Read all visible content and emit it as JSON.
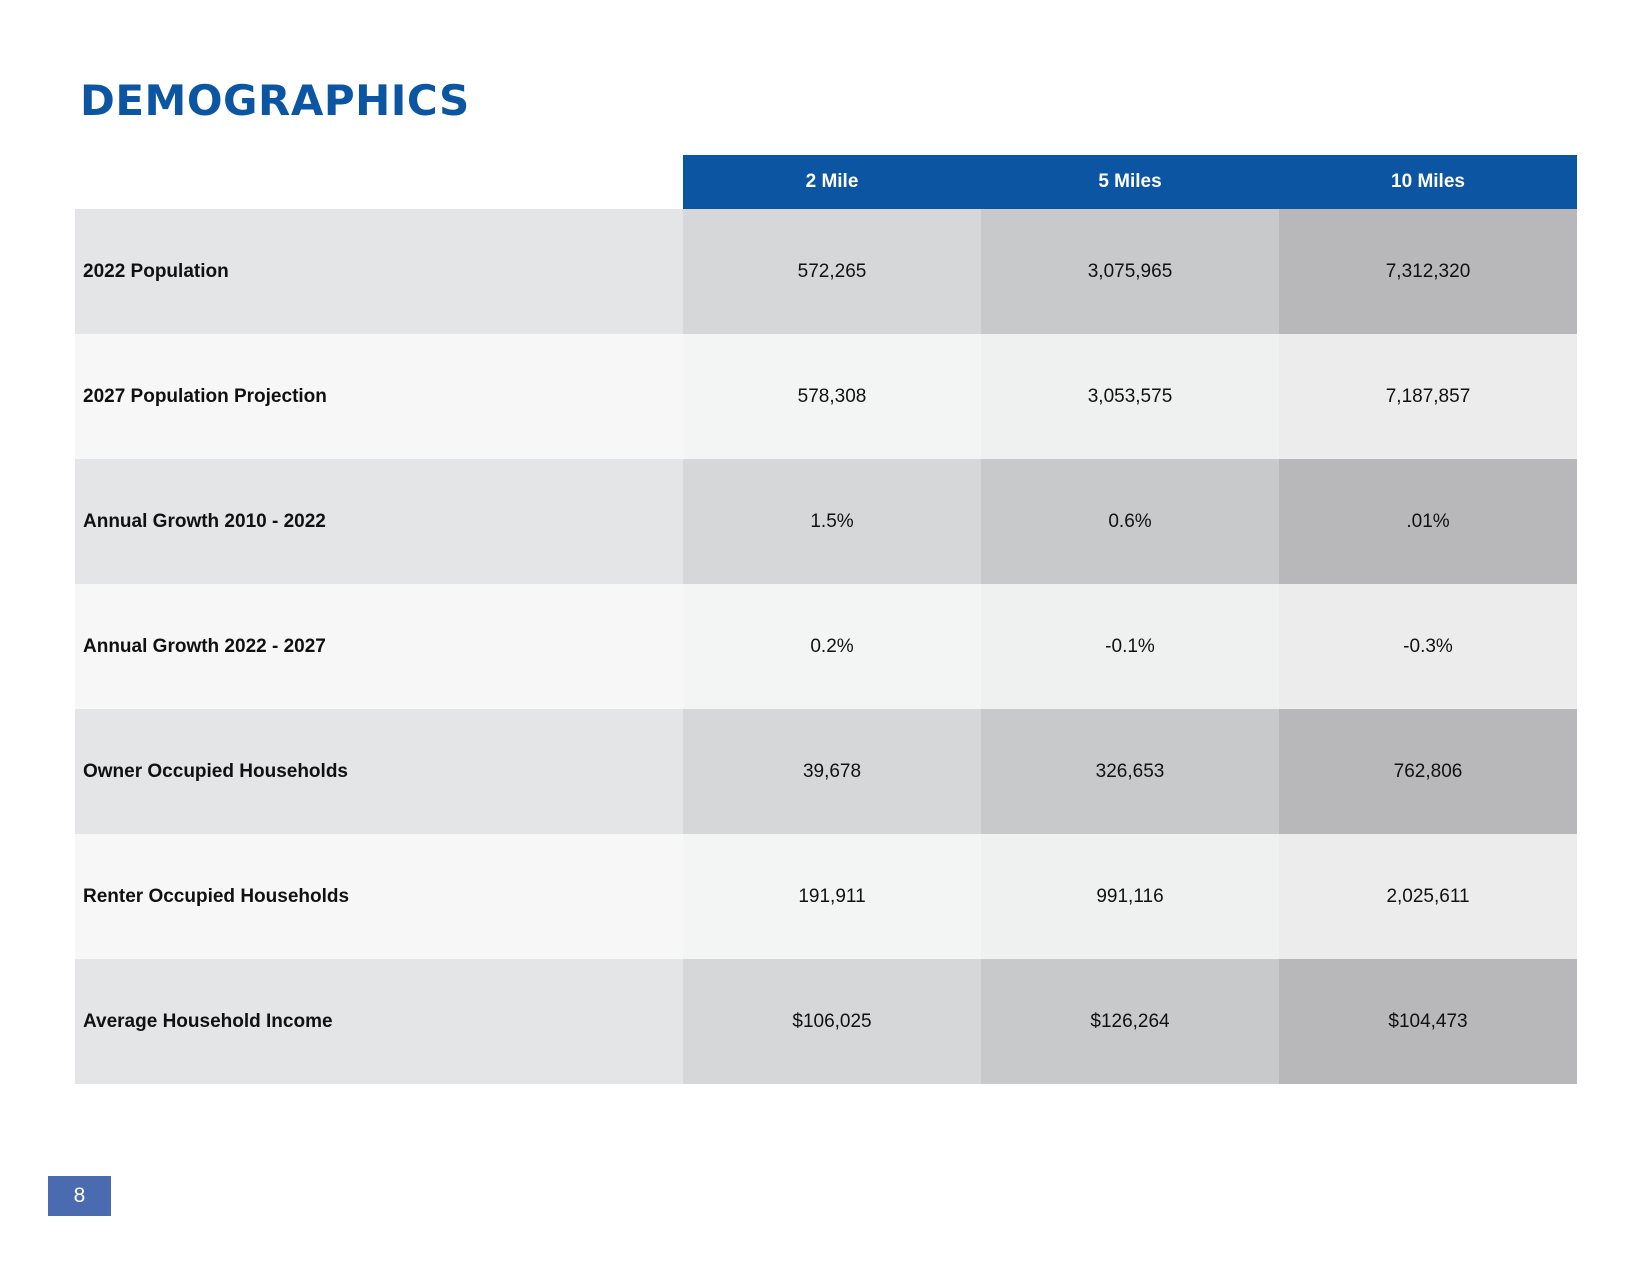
{
  "page": {
    "title": "DEMOGRAPHICS",
    "page_number": "8"
  },
  "colors": {
    "brand_blue": "#0b55a3",
    "page_badge": "#4a6bb0"
  },
  "table": {
    "headers": [
      "2 Mile",
      "5 Miles",
      "10 Miles"
    ],
    "rows": [
      {
        "label": "2022 Population",
        "values": [
          "572,265",
          "3,075,965",
          "7,312,320"
        ]
      },
      {
        "label": "2027 Population Projection",
        "values": [
          "578,308",
          "3,053,575",
          "7,187,857"
        ]
      },
      {
        "label": "Annual Growth 2010 - 2022",
        "values": [
          "1.5%",
          "0.6%",
          ".01%"
        ]
      },
      {
        "label": "Annual Growth 2022 - 2027",
        "values": [
          "0.2%",
          "-0.1%",
          "-0.3%"
        ]
      },
      {
        "label": "Owner Occupied Households",
        "values": [
          "39,678",
          "326,653",
          "762,806"
        ]
      },
      {
        "label": "Renter Occupied Households",
        "values": [
          "191,911",
          "991,116",
          "2,025,611"
        ]
      },
      {
        "label": "Average Household Income",
        "values": [
          "$106,025",
          "$126,264",
          "$104,473"
        ]
      }
    ]
  }
}
